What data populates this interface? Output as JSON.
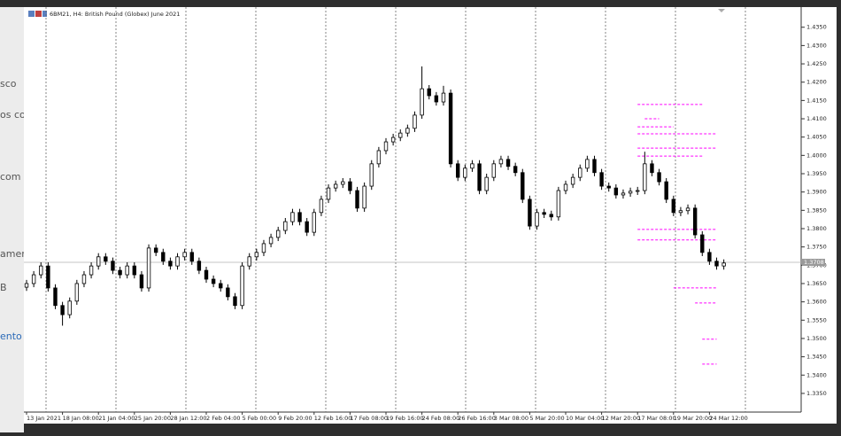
{
  "background_fragments": [
    "sco",
    "os co",
    "com",
    "amen",
    "B",
    "ento"
  ],
  "chart_data": {
    "type": "candlestick",
    "title": "6BM21, H4:  British Pound (Globex) June 2021",
    "categories": [
      "13 Jan 2021",
      null,
      null,
      null,
      null,
      "18 Jan 08:00",
      null,
      null,
      null,
      null,
      "21 Jan 04:00",
      null,
      null,
      null,
      null,
      "25 Jan 20:00",
      null,
      null,
      null,
      null,
      "28 Jan 12:00",
      null,
      null,
      null,
      null,
      "2 Feb 04:00",
      null,
      null,
      null,
      null,
      "5 Feb 00:00",
      null,
      null,
      null,
      null,
      "9 Feb 20:00",
      null,
      null,
      null,
      null,
      "12 Feb 16:00",
      null,
      null,
      null,
      null,
      "17 Feb 08:00",
      null,
      null,
      null,
      null,
      "19 Feb 16:00",
      null,
      null,
      null,
      null,
      "24 Feb 08:00",
      null,
      null,
      null,
      null,
      "26 Feb 16:00",
      null,
      null,
      null,
      null,
      "3 Mar 08:00",
      null,
      null,
      null,
      null,
      "5 Mar 20:00",
      null,
      null,
      null,
      null,
      "10 Mar 04:00",
      null,
      null,
      null,
      null,
      "12 Mar 20:00",
      null,
      null,
      null,
      null,
      "17 Mar 08:00",
      null,
      null,
      null,
      null,
      "19 Mar 20:00",
      null,
      null,
      null,
      null,
      "24 Mar 12:00",
      null,
      null
    ],
    "ohlc": [
      [
        1.364,
        1.366,
        1.363,
        1.365
      ],
      [
        1.365,
        1.3684,
        1.364,
        1.3674
      ],
      [
        1.3674,
        1.3708,
        1.3664,
        1.3698
      ],
      [
        1.3698,
        1.3708,
        1.3628,
        1.3638
      ],
      [
        1.3638,
        1.3648,
        1.358,
        1.359
      ],
      [
        1.359,
        1.36,
        1.3535,
        1.3565
      ],
      [
        1.3565,
        1.3612,
        1.3555,
        1.3602
      ],
      [
        1.3602,
        1.366,
        1.3592,
        1.365
      ],
      [
        1.365,
        1.3684,
        1.364,
        1.3674
      ],
      [
        1.3674,
        1.3708,
        1.3664,
        1.3698
      ],
      [
        1.3698,
        1.3733,
        1.3688,
        1.3723
      ],
      [
        1.3723,
        1.3733,
        1.3701,
        1.3711
      ],
      [
        1.3711,
        1.3721,
        1.3676,
        1.3686
      ],
      [
        1.3686,
        1.3696,
        1.3664,
        1.3674
      ],
      [
        1.3674,
        1.3708,
        1.3664,
        1.3698
      ],
      [
        1.3698,
        1.3708,
        1.3664,
        1.3674
      ],
      [
        1.3674,
        1.3684,
        1.3628,
        1.3638
      ],
      [
        1.3638,
        1.3757,
        1.3628,
        1.3747
      ],
      [
        1.3747,
        1.3757,
        1.3725,
        1.3735
      ],
      [
        1.3735,
        1.3745,
        1.3701,
        1.3711
      ],
      [
        1.3711,
        1.3721,
        1.3688,
        1.3698
      ],
      [
        1.3698,
        1.3733,
        1.3688,
        1.3723
      ],
      [
        1.3723,
        1.3745,
        1.3713,
        1.3735
      ],
      [
        1.3735,
        1.3745,
        1.3701,
        1.3711
      ],
      [
        1.3711,
        1.3721,
        1.3676,
        1.3686
      ],
      [
        1.3686,
        1.3696,
        1.3652,
        1.3662
      ],
      [
        1.3662,
        1.3672,
        1.364,
        1.365
      ],
      [
        1.365,
        1.366,
        1.3628,
        1.3638
      ],
      [
        1.3638,
        1.3648,
        1.3604,
        1.3614
      ],
      [
        1.3614,
        1.3624,
        1.358,
        1.359
      ],
      [
        1.359,
        1.3708,
        1.358,
        1.3698
      ],
      [
        1.3698,
        1.3733,
        1.3688,
        1.3723
      ],
      [
        1.3723,
        1.3745,
        1.3713,
        1.3735
      ],
      [
        1.3735,
        1.3769,
        1.3725,
        1.3759
      ],
      [
        1.3759,
        1.3786,
        1.3749,
        1.3776
      ],
      [
        1.3776,
        1.3805,
        1.3766,
        1.3795
      ],
      [
        1.3795,
        1.3829,
        1.3785,
        1.3819
      ],
      [
        1.3819,
        1.3854,
        1.3809,
        1.3844
      ],
      [
        1.3844,
        1.3854,
        1.3809,
        1.3819
      ],
      [
        1.3819,
        1.3829,
        1.378,
        1.379
      ],
      [
        1.379,
        1.3854,
        1.378,
        1.3844
      ],
      [
        1.3844,
        1.389,
        1.3834,
        1.388
      ],
      [
        1.388,
        1.3921,
        1.387,
        1.3911
      ],
      [
        1.3911,
        1.3931,
        1.3901,
        1.3921
      ],
      [
        1.3921,
        1.3938,
        1.3911,
        1.3928
      ],
      [
        1.3928,
        1.3938,
        1.3894,
        1.3904
      ],
      [
        1.3904,
        1.3914,
        1.3846,
        1.3856
      ],
      [
        1.3856,
        1.3926,
        1.3846,
        1.3916
      ],
      [
        1.3916,
        1.3987,
        1.3906,
        1.3977
      ],
      [
        1.3977,
        1.4023,
        1.3967,
        1.4013
      ],
      [
        1.4013,
        1.4047,
        1.4003,
        1.4037
      ],
      [
        1.4037,
        1.4059,
        1.4027,
        1.4049
      ],
      [
        1.4049,
        1.4071,
        1.4039,
        1.4061
      ],
      [
        1.4061,
        1.4084,
        1.4051,
        1.4074
      ],
      [
        1.4074,
        1.412,
        1.4064,
        1.411
      ],
      [
        1.411,
        1.4243,
        1.41,
        1.4182
      ],
      [
        1.4182,
        1.4192,
        1.4153,
        1.4163
      ],
      [
        1.4163,
        1.4173,
        1.4136,
        1.4146
      ],
      [
        1.4146,
        1.419,
        1.4136,
        1.417
      ],
      [
        1.417,
        1.418,
        1.3967,
        1.3977
      ],
      [
        1.3977,
        1.3987,
        1.393,
        1.394
      ],
      [
        1.394,
        1.3975,
        1.393,
        1.3965
      ],
      [
        1.3965,
        1.3987,
        1.3955,
        1.3977
      ],
      [
        1.3977,
        1.3987,
        1.3894,
        1.3904
      ],
      [
        1.3904,
        1.395,
        1.3894,
        1.394
      ],
      [
        1.394,
        1.3987,
        1.393,
        1.3977
      ],
      [
        1.3977,
        1.3999,
        1.3967,
        1.3989
      ],
      [
        1.3989,
        1.3999,
        1.396,
        1.397
      ],
      [
        1.397,
        1.398,
        1.3943,
        1.3953
      ],
      [
        1.3953,
        1.3963,
        1.387,
        1.388
      ],
      [
        1.388,
        1.389,
        1.3797,
        1.3807
      ],
      [
        1.3807,
        1.3854,
        1.3797,
        1.3844
      ],
      [
        1.3844,
        1.3854,
        1.3829,
        1.3839
      ],
      [
        1.3839,
        1.3849,
        1.3822,
        1.3832
      ],
      [
        1.3832,
        1.3914,
        1.3822,
        1.3904
      ],
      [
        1.3904,
        1.3931,
        1.3894,
        1.3921
      ],
      [
        1.3921,
        1.395,
        1.3911,
        1.394
      ],
      [
        1.394,
        1.3975,
        1.393,
        1.3965
      ],
      [
        1.3965,
        1.3999,
        1.3955,
        1.3989
      ],
      [
        1.3989,
        1.3999,
        1.3943,
        1.3953
      ],
      [
        1.3953,
        1.3963,
        1.3906,
        1.3916
      ],
      [
        1.3916,
        1.3926,
        1.3901,
        1.3911
      ],
      [
        1.3911,
        1.3921,
        1.3882,
        1.3892
      ],
      [
        1.3892,
        1.3907,
        1.3882,
        1.3897
      ],
      [
        1.3897,
        1.3912,
        1.3887,
        1.3902
      ],
      [
        1.3902,
        1.3914,
        1.3892,
        1.3904
      ],
      [
        1.3904,
        1.401,
        1.3894,
        1.3977
      ],
      [
        1.3977,
        1.3987,
        1.3943,
        1.3953
      ],
      [
        1.3953,
        1.3963,
        1.3918,
        1.3928
      ],
      [
        1.3928,
        1.3938,
        1.387,
        1.388
      ],
      [
        1.388,
        1.389,
        1.3834,
        1.3844
      ],
      [
        1.3844,
        1.3859,
        1.3834,
        1.3849
      ],
      [
        1.3849,
        1.3866,
        1.3839,
        1.3856
      ],
      [
        1.3856,
        1.3866,
        1.3773,
        1.3783
      ],
      [
        1.3783,
        1.3793,
        1.3725,
        1.3735
      ],
      [
        1.3735,
        1.3745,
        1.3701,
        1.3711
      ],
      [
        1.3711,
        1.3721,
        1.3688,
        1.3698
      ],
      [
        1.3698,
        1.3716,
        1.3688,
        1.3706
      ]
    ],
    "ylim": [
      1.3299,
      1.4405
    ],
    "yticks": [
      {
        "value": 1.335,
        "label": "1.3350"
      },
      {
        "value": 1.34,
        "label": "1.3400"
      },
      {
        "value": 1.345,
        "label": "1.3450"
      },
      {
        "value": 1.35,
        "label": "1.3500"
      },
      {
        "value": 1.355,
        "label": "1.3550"
      },
      {
        "value": 1.36,
        "label": "1.3600"
      },
      {
        "value": 1.365,
        "label": "1.3650"
      },
      {
        "value": 1.37,
        "label": "1.3700"
      },
      {
        "value": 1.375,
        "label": "1.3750"
      },
      {
        "value": 1.38,
        "label": "1.3800"
      },
      {
        "value": 1.385,
        "label": "1.3850"
      },
      {
        "value": 1.39,
        "label": "1.3900"
      },
      {
        "value": 1.395,
        "label": "1.3950"
      },
      {
        "value": 1.4,
        "label": "1.4000"
      },
      {
        "value": 1.405,
        "label": "1.4050"
      },
      {
        "value": 1.41,
        "label": "1.4100"
      },
      {
        "value": 1.415,
        "label": "1.4150"
      },
      {
        "value": 1.42,
        "label": "1.4200"
      },
      {
        "value": 1.425,
        "label": "1.4250"
      },
      {
        "value": 1.43,
        "label": "1.4300"
      },
      {
        "value": 1.435,
        "label": "1.4350"
      }
    ],
    "current_price": 1.3708,
    "levels": [
      {
        "price": 1.4139,
        "from": 85,
        "to": 94
      },
      {
        "price": 1.41,
        "from": 86,
        "to": 88
      },
      {
        "price": 1.4078,
        "from": 85,
        "to": 90
      },
      {
        "price": 1.4059,
        "from": 85,
        "to": 96
      },
      {
        "price": 1.402,
        "from": 85,
        "to": 96
      },
      {
        "price": 1.3998,
        "from": 85,
        "to": 94
      },
      {
        "price": 1.3798,
        "from": 85,
        "to": 96
      },
      {
        "price": 1.3769,
        "from": 85,
        "to": 96
      },
      {
        "price": 1.3638,
        "from": 90,
        "to": 96
      },
      {
        "price": 1.3597,
        "from": 93,
        "to": 96
      },
      {
        "price": 1.3498,
        "from": 94,
        "to": 96
      },
      {
        "price": 1.343,
        "from": 94,
        "to": 96
      }
    ],
    "level_color": "#ff00ff",
    "grid": true
  }
}
